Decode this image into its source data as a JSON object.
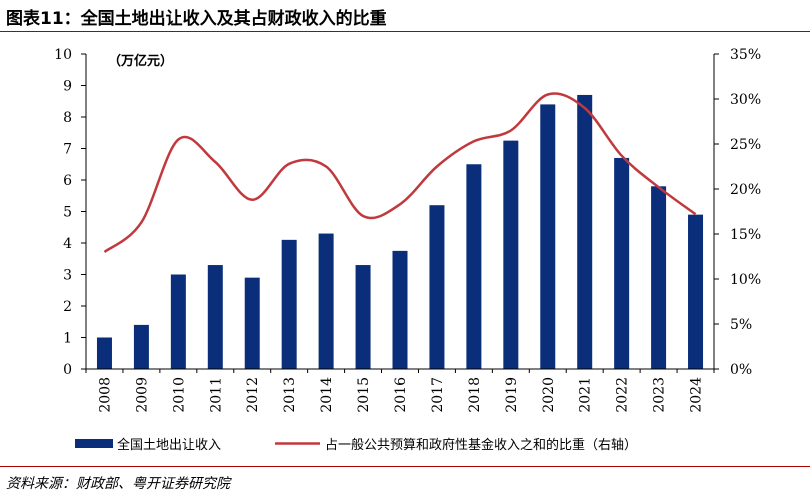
{
  "header": {
    "title": "图表11：全国土地出让收入及其占财政收入的比重"
  },
  "footer": {
    "source": "资料来源：财政部、粤开证券研究院"
  },
  "colors": {
    "bar": "#0b2e7a",
    "line": "#c0393d",
    "rule": "#b00000"
  },
  "chart_data": {
    "type": "bar",
    "categories": [
      "2008",
      "2009",
      "2010",
      "2011",
      "2012",
      "2013",
      "2014",
      "2015",
      "2016",
      "2017",
      "2018",
      "2019",
      "2020",
      "2021",
      "2022",
      "2023",
      "2024"
    ],
    "series": [
      {
        "name": "全国土地出让收入",
        "type": "bar",
        "axis": "left",
        "values": [
          1.0,
          1.4,
          3.0,
          3.3,
          2.9,
          4.1,
          4.3,
          3.3,
          3.75,
          5.2,
          6.5,
          7.25,
          8.4,
          8.7,
          6.7,
          5.8,
          4.9
        ]
      },
      {
        "name": "占一般公共预算和政府性基金收入之和的比重（右轴）",
        "type": "line",
        "axis": "right",
        "values": [
          13.0,
          16.3,
          25.5,
          23.0,
          18.8,
          22.8,
          22.5,
          17.0,
          18.3,
          22.5,
          25.3,
          26.5,
          30.5,
          29.0,
          23.7,
          20.2,
          17.2
        ]
      }
    ],
    "y_left": {
      "unit_label": "（万亿元）",
      "ylim": [
        0,
        10
      ],
      "ticks": [
        "0",
        "1",
        "2",
        "3",
        "4",
        "5",
        "6",
        "7",
        "8",
        "9",
        "10"
      ]
    },
    "y_right": {
      "ylim": [
        0,
        35
      ],
      "ticks": [
        "0%",
        "5%",
        "10%",
        "15%",
        "20%",
        "25%",
        "30%",
        "35%"
      ]
    },
    "grid": false,
    "legend_position": "bottom"
  }
}
